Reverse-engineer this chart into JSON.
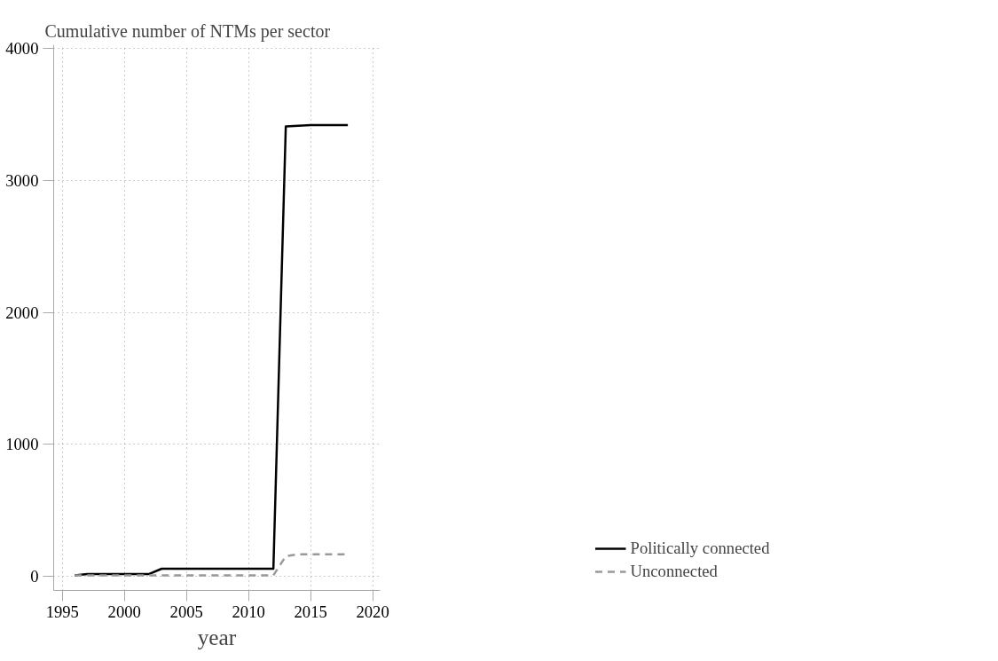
{
  "chart_data": {
    "type": "line",
    "title": "Cumulative number of NTMs per sector",
    "xlabel": "year",
    "x": [
      1996,
      1997,
      1998,
      1999,
      2000,
      2001,
      2002,
      2003,
      2004,
      2005,
      2006,
      2007,
      2008,
      2009,
      2010,
      2011,
      2012,
      2013,
      2014,
      2015,
      2016,
      2017,
      2018
    ],
    "series": [
      {
        "name": "Politically connected",
        "color": "#000000",
        "line_style": "solid",
        "values": [
          5,
          15,
          15,
          15,
          15,
          15,
          15,
          55,
          55,
          55,
          55,
          55,
          55,
          55,
          55,
          55,
          55,
          3410,
          3415,
          3420,
          3420,
          3420,
          3420
        ]
      },
      {
        "name": "Unconnected",
        "color": "#999999",
        "line_style": "dashed",
        "values": [
          5,
          5,
          5,
          5,
          5,
          5,
          5,
          5,
          5,
          5,
          5,
          5,
          5,
          5,
          5,
          5,
          5,
          150,
          165,
          165,
          165,
          165,
          165
        ]
      }
    ],
    "xlim": [
      1994.3,
      2020.6
    ],
    "ylim": [
      -110,
      4030
    ],
    "xticks": [
      1995,
      2000,
      2005,
      2010,
      2015,
      2020
    ],
    "yticks": [
      0,
      1000,
      2000,
      3000,
      4000
    ],
    "grid": true,
    "legend": "bottom right",
    "marker": "none"
  }
}
